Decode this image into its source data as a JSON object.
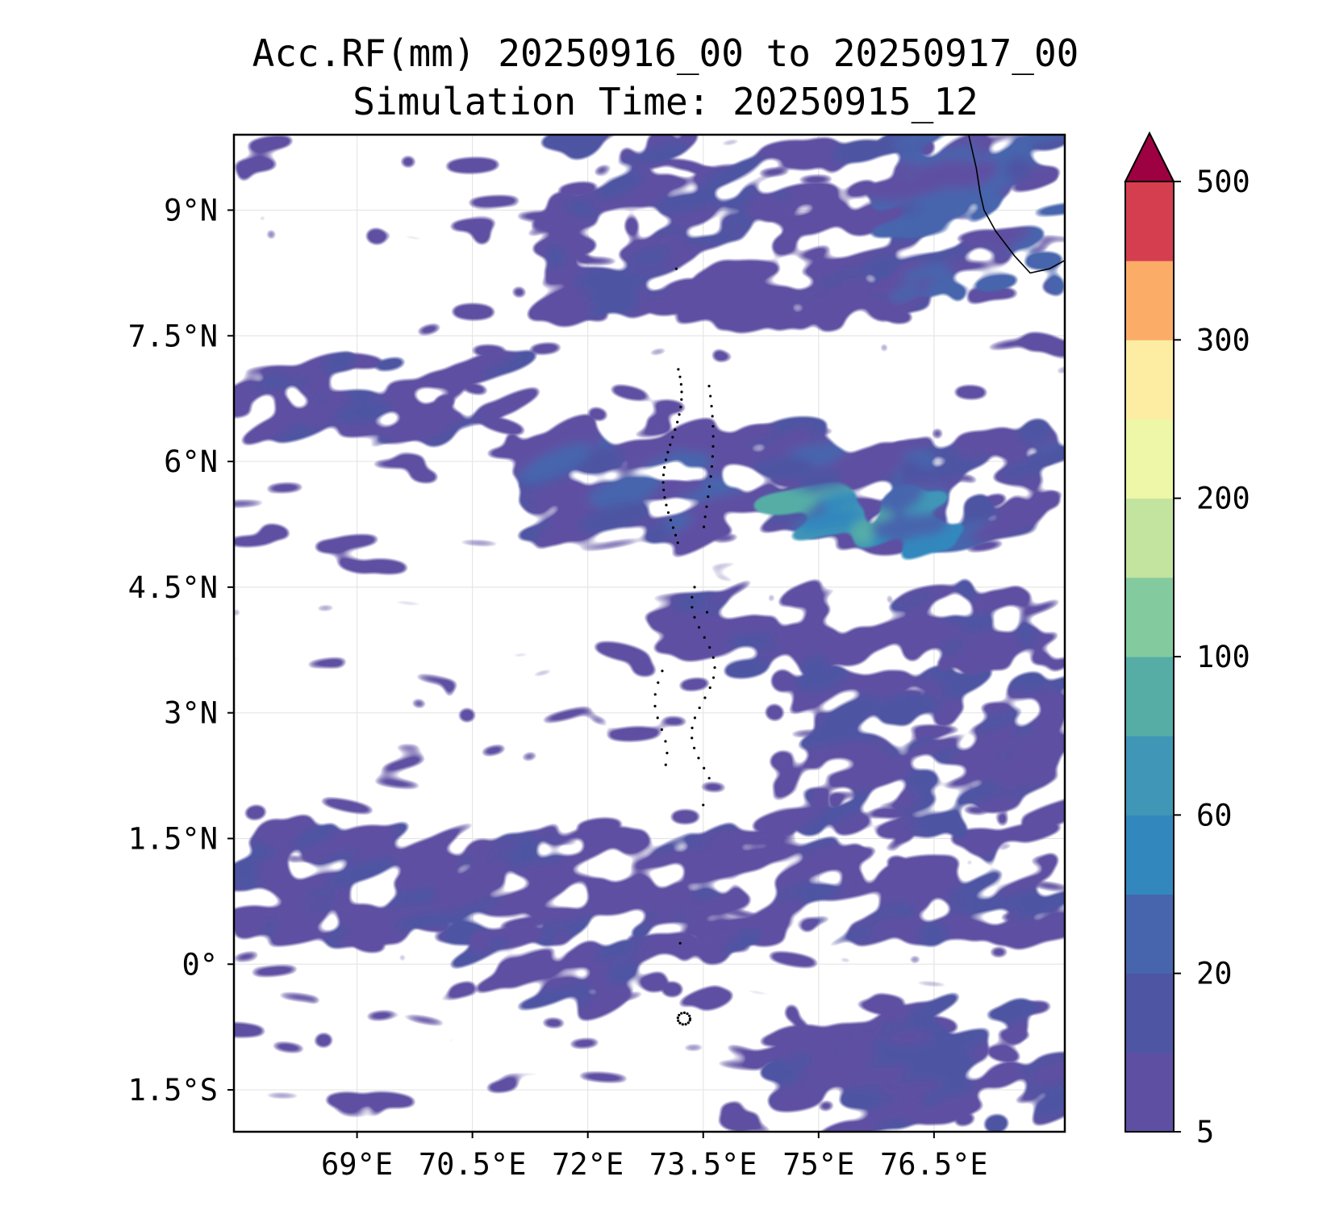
{
  "chart_data": {
    "type": "heatmap",
    "title": "Acc.RF(mm) 20250916_00 to 20250917_00",
    "subtitle": "Simulation Time: 20250915_12",
    "xlabel": "",
    "ylabel": "",
    "lon_range": [
      67.4,
      78.2
    ],
    "lat_range": [
      -2.0,
      9.9
    ],
    "x_ticks": [
      69.0,
      70.5,
      72.0,
      73.5,
      75.0,
      76.5
    ],
    "x_tick_labels": [
      "69°E",
      "70.5°E",
      "72°E",
      "73.5°E",
      "75°E",
      "76.5°E"
    ],
    "y_ticks": [
      9.0,
      7.5,
      6.0,
      4.5,
      3.0,
      1.5,
      0.0,
      -1.5
    ],
    "y_tick_labels": [
      "9°N",
      "7.5°N",
      "6°N",
      "4.5°N",
      "3°N",
      "1.5°N",
      "0°",
      "1.5°S"
    ],
    "grid": true,
    "colorbar": {
      "levels": [
        5,
        10,
        20,
        40,
        60,
        80,
        100,
        150,
        200,
        250,
        300,
        400,
        500
      ],
      "colors": [
        "#5e4fa2",
        "#4e55a3",
        "#4665ad",
        "#3288bd",
        "#3f96b7",
        "#55ada6",
        "#84ca9f",
        "#c3e49e",
        "#eef6a8",
        "#fdeda3",
        "#fbad68",
        "#d53e4f"
      ],
      "extend_color": "#9e0142",
      "tick_values": [
        5,
        20,
        60,
        100,
        200,
        300,
        500
      ],
      "tick_labels": [
        "5",
        "20",
        "60",
        "100",
        "200",
        "300",
        "500"
      ]
    },
    "rain_bands": [
      {
        "lon": [
          67.4,
          71.0
        ],
        "lat": [
          6.3,
          7.2
        ],
        "value": 15
      },
      {
        "lon": [
          71.0,
          78.2
        ],
        "lat": [
          5.0,
          6.4
        ],
        "value": 18
      },
      {
        "lon": [
          74.5,
          76.5
        ],
        "lat": [
          5.0,
          5.8
        ],
        "value": 70
      },
      {
        "lon": [
          71.5,
          76.5
        ],
        "lat": [
          7.6,
          9.9
        ],
        "value": 15
      },
      {
        "lon": [
          76.0,
          78.2
        ],
        "lat": [
          8.0,
          9.9
        ],
        "value": 25
      },
      {
        "lon": [
          67.4,
          78.2
        ],
        "lat": [
          0.3,
          1.6
        ],
        "value": 15
      },
      {
        "lon": [
          74.5,
          78.2
        ],
        "lat": [
          1.6,
          3.5
        ],
        "value": 10
      },
      {
        "lon": [
          73.0,
          78.2
        ],
        "lat": [
          3.5,
          4.5
        ],
        "value": 8
      },
      {
        "lon": [
          70.5,
          74.0
        ],
        "lat": [
          -0.5,
          0.3
        ],
        "value": 8
      },
      {
        "lon": [
          74.5,
          78.2
        ],
        "lat": [
          -2.0,
          -0.5
        ],
        "value": 8
      }
    ]
  }
}
